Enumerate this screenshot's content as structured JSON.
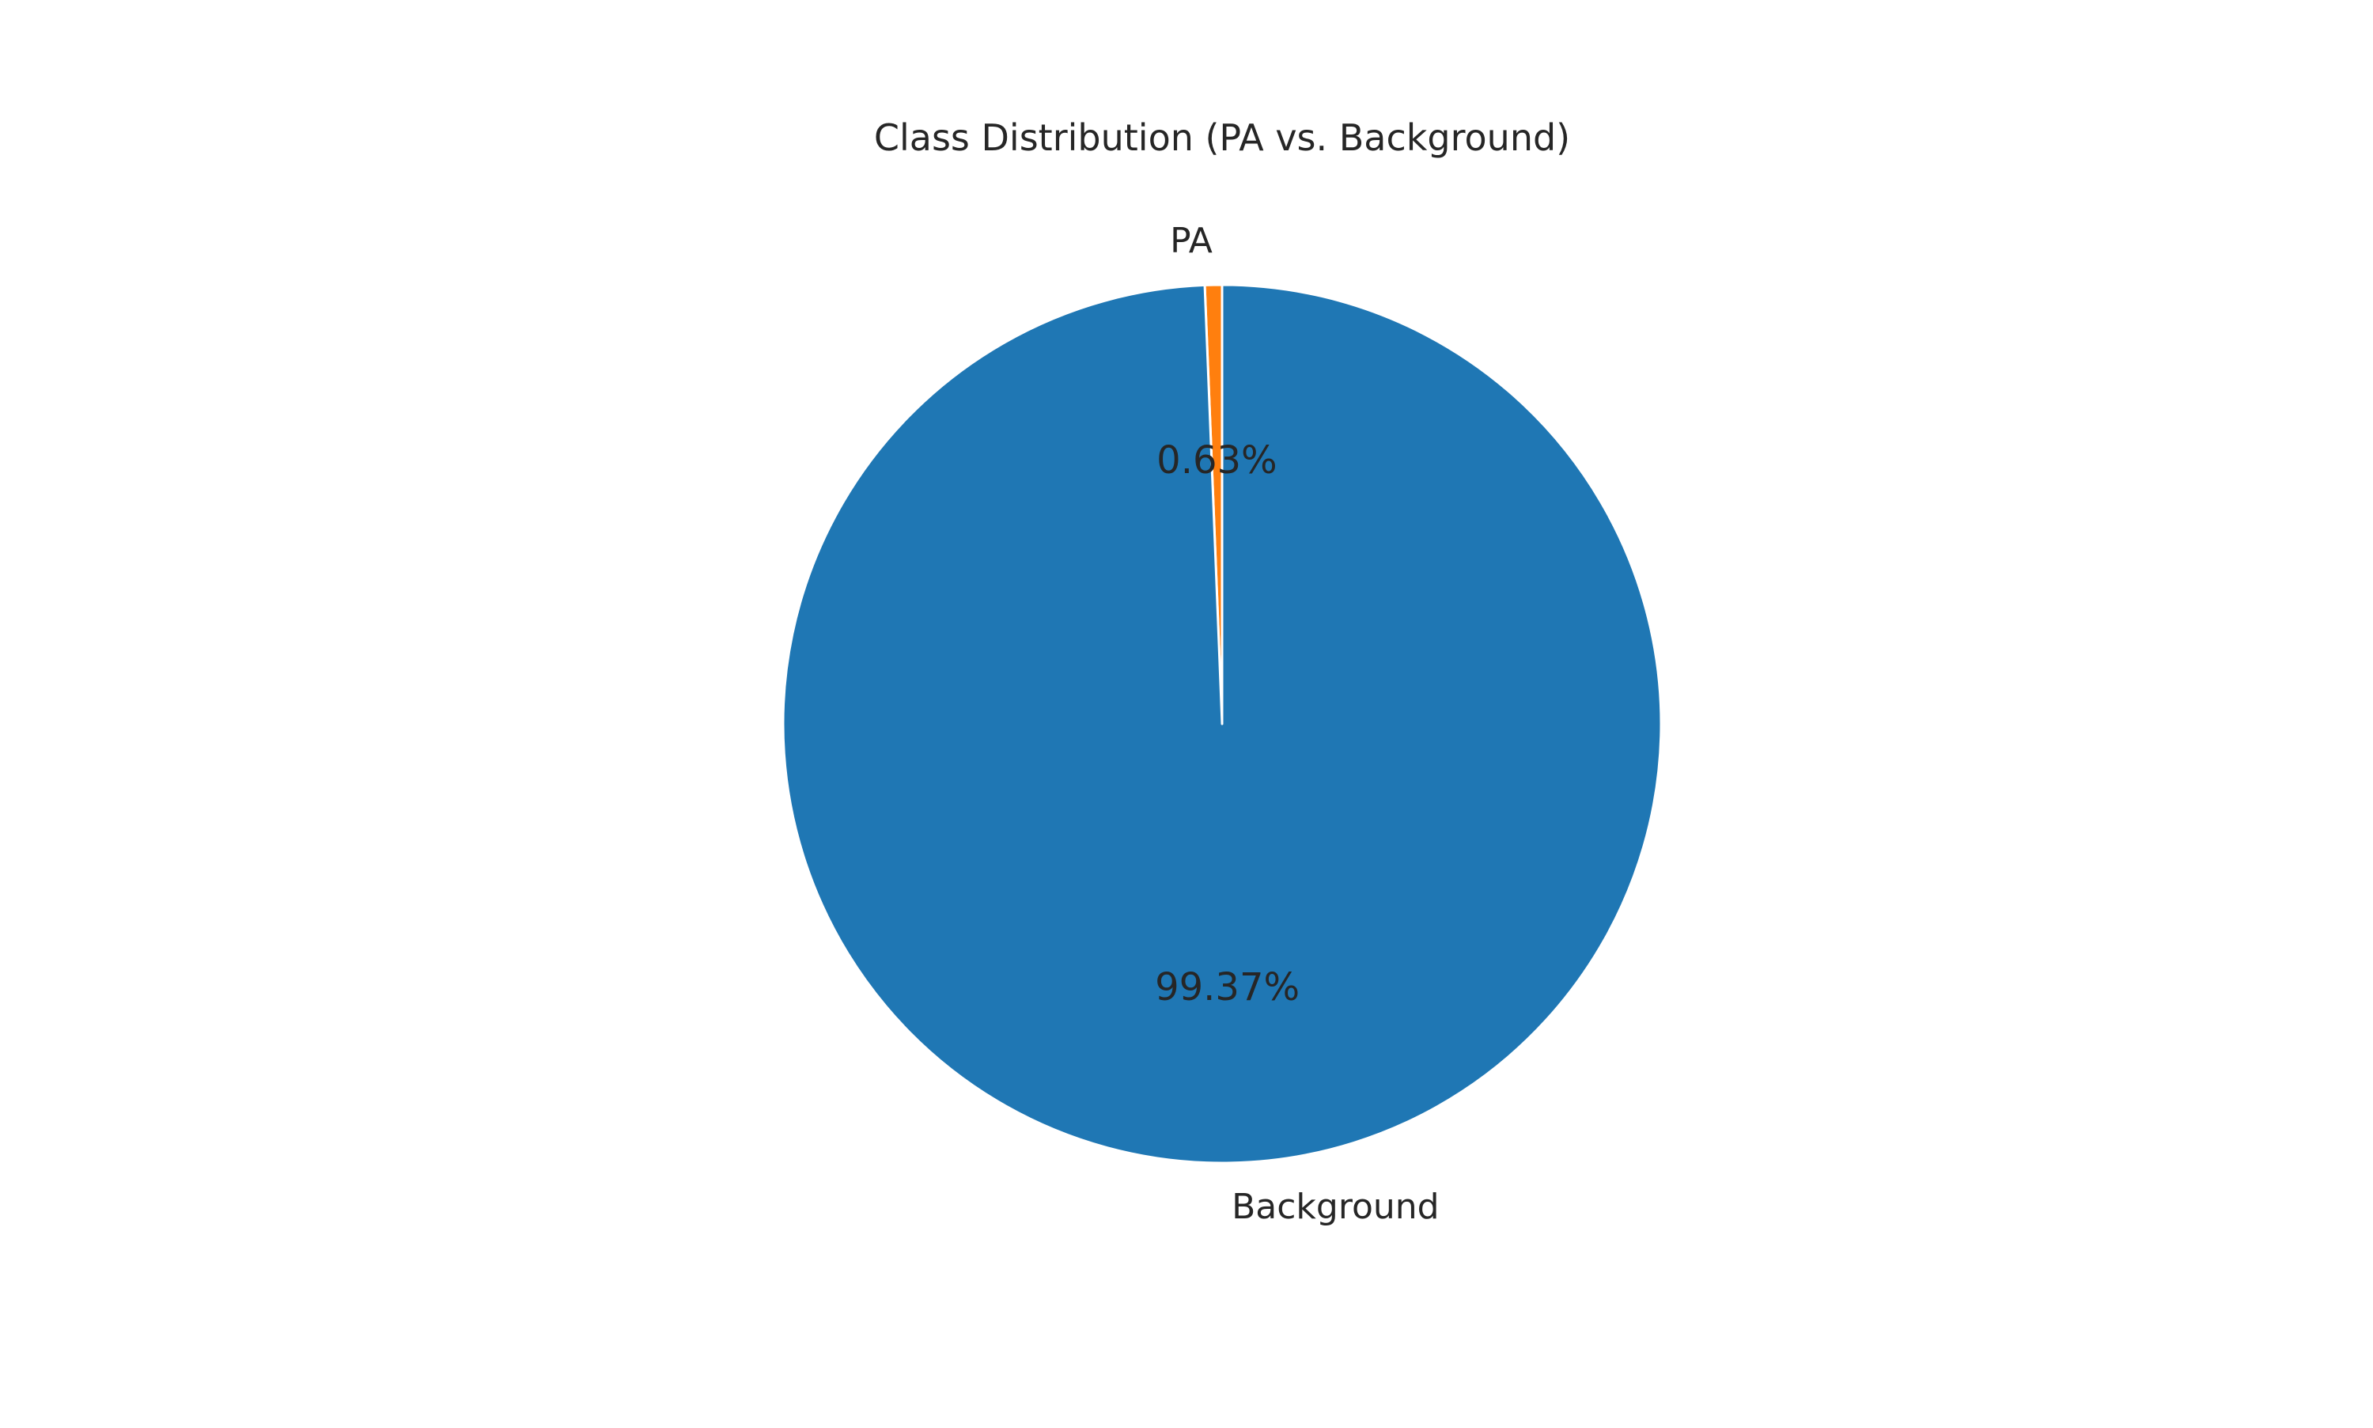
{
  "chart_data": {
    "type": "pie",
    "title": "Class Distribution (PA vs. Background)",
    "slices": [
      {
        "label": "PA",
        "value": 0.63,
        "pct_label": "0.63%",
        "color": "#ff7f0e"
      },
      {
        "label": "Background",
        "value": 99.37,
        "pct_label": "99.37%",
        "color": "#1f77b4"
      }
    ],
    "start_angle_deg": 90,
    "direction": "counterclockwise",
    "wedge_edge_color": "#ffffff"
  }
}
